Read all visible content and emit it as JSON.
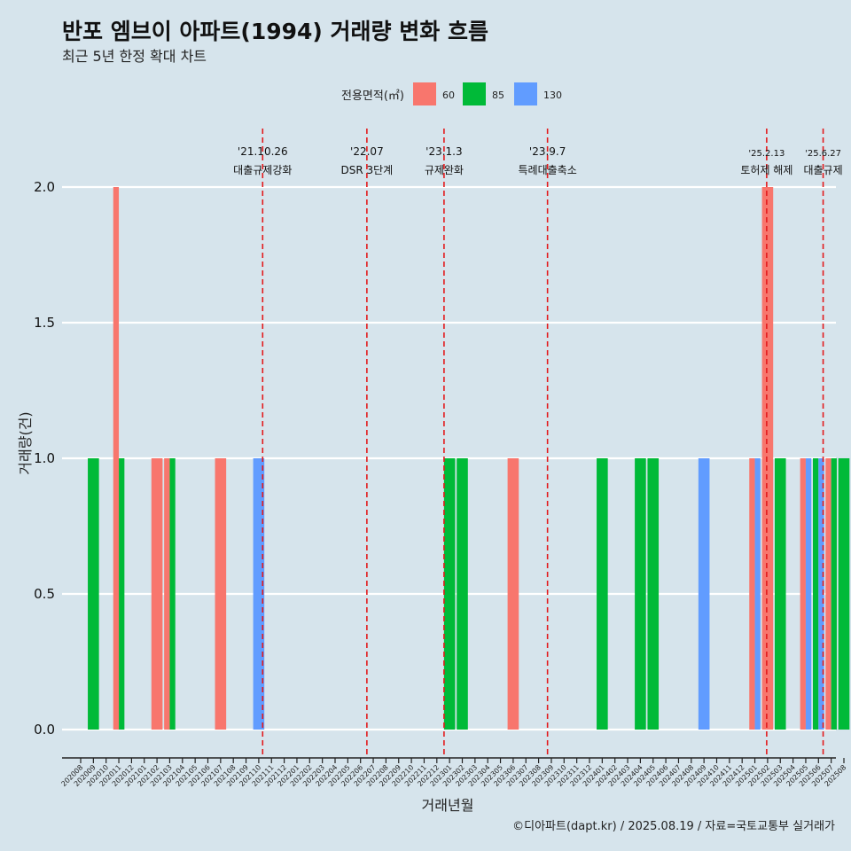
{
  "title": "반포 엠브이 아파트(1994) 거래량 변화 흐름",
  "subtitle": "최근 5년 한정 확대 차트",
  "caption": "©디아파트(dapt.kr) / 2025.08.19 / 자료=국토교통부 실거래가",
  "chart_data": {
    "type": "bar",
    "xlabel": "거래년월",
    "ylabel": "거래량(건)",
    "ylim": [
      0,
      2
    ],
    "yticks": [
      "0.0",
      "0.5",
      "1.0",
      "1.5",
      "2.0"
    ],
    "grid": "horizontal",
    "legend": {
      "title": "전용면적(㎡)",
      "position": "top",
      "entries": [
        {
          "name": "60",
          "color": "#f8766d"
        },
        {
          "name": "85",
          "color": "#00ba38"
        },
        {
          "name": "130",
          "color": "#619cff"
        }
      ]
    },
    "categories": [
      "202008",
      "202009",
      "202010",
      "202011",
      "202012",
      "202101",
      "202102",
      "202103",
      "202104",
      "202105",
      "202106",
      "202107",
      "202108",
      "202109",
      "202110",
      "202111",
      "202112",
      "202201",
      "202202",
      "202203",
      "202204",
      "202205",
      "202206",
      "202207",
      "202208",
      "202209",
      "202210",
      "202211",
      "202212",
      "202301",
      "202302",
      "202303",
      "202304",
      "202305",
      "202306",
      "202307",
      "202308",
      "202309",
      "202310",
      "202311",
      "202312",
      "202401",
      "202402",
      "202403",
      "202404",
      "202405",
      "202406",
      "202407",
      "202408",
      "202409",
      "202410",
      "202411",
      "202412",
      "202501",
      "202502",
      "202503",
      "202504",
      "202505",
      "202506",
      "202507",
      "202508"
    ],
    "bars": [
      {
        "month": "202009",
        "size": "85",
        "value": 1
      },
      {
        "month": "202011",
        "size": "60",
        "value": 2
      },
      {
        "month": "202011",
        "size": "85",
        "value": 1
      },
      {
        "month": "202102",
        "size": "60",
        "value": 1
      },
      {
        "month": "202103",
        "size": "60",
        "value": 1
      },
      {
        "month": "202103",
        "size": "85",
        "value": 1
      },
      {
        "month": "202107",
        "size": "60",
        "value": 1
      },
      {
        "month": "202110",
        "size": "130",
        "value": 1
      },
      {
        "month": "202301",
        "size": "85",
        "value": 1
      },
      {
        "month": "202302",
        "size": "85",
        "value": 1
      },
      {
        "month": "202306",
        "size": "60",
        "value": 1
      },
      {
        "month": "202401",
        "size": "85",
        "value": 1
      },
      {
        "month": "202404",
        "size": "85",
        "value": 1
      },
      {
        "month": "202405",
        "size": "85",
        "value": 1
      },
      {
        "month": "202409",
        "size": "130",
        "value": 1
      },
      {
        "month": "202501",
        "size": "60",
        "value": 1
      },
      {
        "month": "202501",
        "size": "130",
        "value": 1
      },
      {
        "month": "202502",
        "size": "60",
        "value": 2
      },
      {
        "month": "202503",
        "size": "85",
        "value": 1
      },
      {
        "month": "202505",
        "size": "60",
        "value": 1
      },
      {
        "month": "202505",
        "size": "130",
        "value": 1
      },
      {
        "month": "202506",
        "size": "85",
        "value": 1
      },
      {
        "month": "202506",
        "size": "130",
        "value": 1
      },
      {
        "month": "202507",
        "size": "60",
        "value": 1
      },
      {
        "month": "202507",
        "size": "85",
        "value": 1
      },
      {
        "month": "202508",
        "size": "85",
        "value": 1
      }
    ],
    "events": [
      {
        "date": "2021-10-26",
        "month": "202110",
        "label1": "'21.10.26",
        "label2": "대출규제강화"
      },
      {
        "date": "2022-07-01",
        "month": "202207",
        "label1": "'22.07",
        "label2": "DSR 3단계"
      },
      {
        "date": "2023-01-03",
        "month": "202301",
        "label1": "'23.1.3",
        "label2": "규제완화"
      },
      {
        "date": "2023-09-07",
        "month": "202309",
        "label1": "'23.9.7",
        "label2": "특례대출축소"
      },
      {
        "date": "2025-02-13",
        "month": "202502",
        "label1": "'25.2.13",
        "label2": "토허제 해제"
      },
      {
        "date": "2025-06-27",
        "month": "202506",
        "label1": "'25.6.27",
        "label2": "대출규제"
      }
    ]
  }
}
